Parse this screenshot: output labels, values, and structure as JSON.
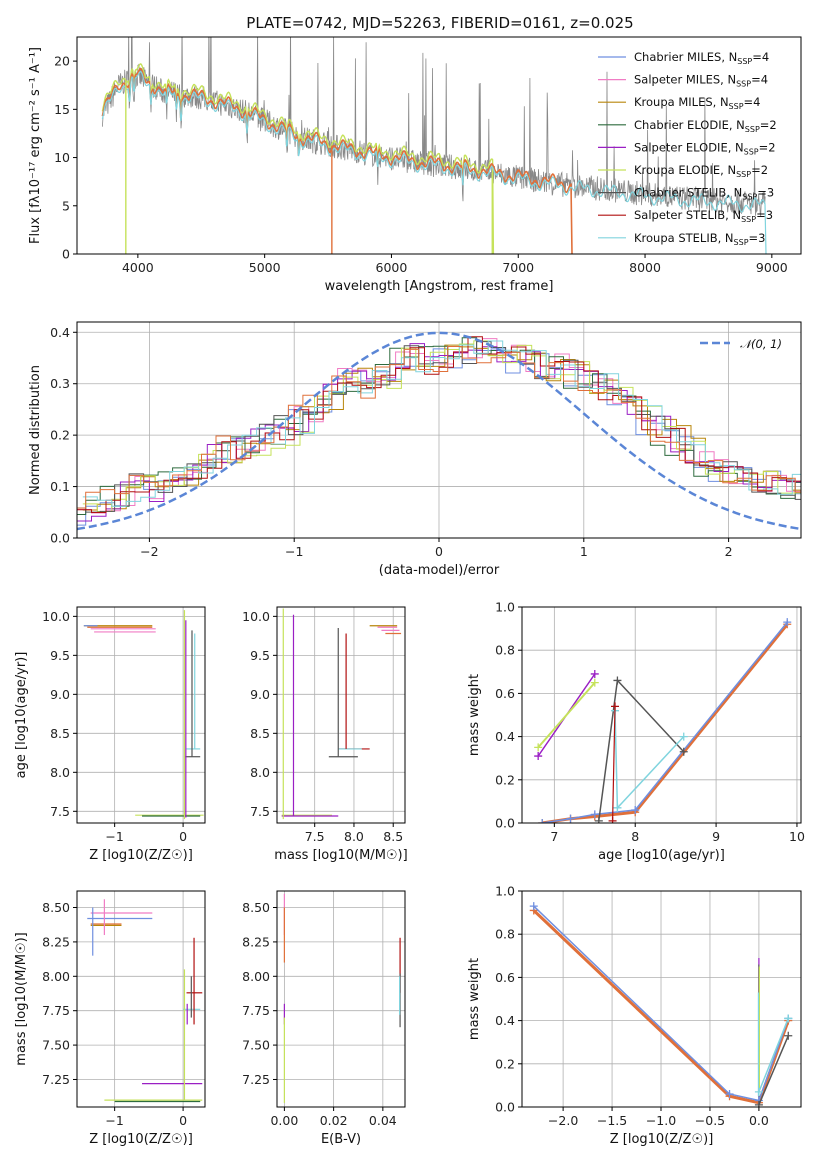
{
  "colors": {
    "chabrier_miles": "#6f8fe0",
    "salpeter_miles": "#f07cc4",
    "kroupa_miles": "#b8860b",
    "chabrier_elodie": "#2e6b3e",
    "salpeter_elodie": "#9a1fc4",
    "kroupa_elodie": "#c5e25a",
    "chabrier_stelib": "#555555",
    "salpeter_stelib": "#b01010",
    "kroupa_stelib": "#80d4de",
    "observed": "#888888",
    "orange": "#e0703a",
    "normal": "#5b86d6"
  },
  "chart_data": [
    {
      "id": "spectrum",
      "type": "line",
      "title": "PLATE=0742, MJD=52263, FIBERID=0161, z=0.025",
      "xlabel": "wavelength [Angstrom, rest frame]",
      "ylabel": "Flux [fλ10⁻¹⁷ erg cm⁻² s⁻¹ A⁻¹]",
      "xlim": [
        3520,
        9230
      ],
      "ylim": [
        0,
        22.5
      ],
      "xticks": [
        4000,
        5000,
        6000,
        7000,
        8000,
        9000
      ],
      "yticks": [
        0,
        5,
        10,
        15,
        20
      ],
      "legend": [
        "Chabrier MILES, N_SSP=4",
        "Salpeter MILES, N_SSP=4",
        "Kroupa MILES, N_SSP=4",
        "Chabrier ELODIE, N_SSP=2",
        "Salpeter ELODIE, N_SSP=2",
        "Kroupa ELODIE, N_SSP=2",
        "Chabrier STELIB, N_SSP=3",
        "Salpeter STELIB, N_SSP=3",
        "Kroupa STELIB, N_SSP=3"
      ],
      "continuum": {
        "x": [
          3720,
          3850,
          4000,
          4200,
          4500,
          4800,
          5000,
          5300,
          5600,
          5900,
          6200,
          6500,
          6800,
          7100,
          7400,
          7700,
          8000,
          8300,
          8600,
          8950
        ],
        "y": [
          14.5,
          17.5,
          18.5,
          16.8,
          16.2,
          15.0,
          13.8,
          12.0,
          11.0,
          10.2,
          9.5,
          9.0,
          8.4,
          7.7,
          7.1,
          6.7,
          6.2,
          5.8,
          5.5,
          5.2
        ]
      },
      "model_ranges": {
        "orange": [
          3720,
          7420
        ],
        "kroupa_elodie": [
          3720,
          6800
        ],
        "kroupa_stelib": [
          3720,
          8950
        ]
      }
    },
    {
      "id": "residual_hist",
      "type": "line",
      "xlabel": "(data-model)/error",
      "ylabel": "Normed distribution",
      "xlim": [
        -2.5,
        2.5
      ],
      "ylim": [
        0,
        0.42
      ],
      "xticks": [
        -2,
        -1,
        0,
        1,
        2
      ],
      "yticks": [
        0.0,
        0.1,
        0.2,
        0.3,
        0.4
      ],
      "legend": [
        "𝒩(0, 1)"
      ],
      "bin_width": 0.1,
      "base_hist": [
        0.055,
        0.065,
        0.08,
        0.09,
        0.1,
        0.1,
        0.11,
        0.12,
        0.135,
        0.155,
        0.17,
        0.18,
        0.19,
        0.2,
        0.21,
        0.23,
        0.25,
        0.27,
        0.3,
        0.31,
        0.3,
        0.32,
        0.34,
        0.35,
        0.345,
        0.35,
        0.36,
        0.365,
        0.36,
        0.355,
        0.35,
        0.345,
        0.335,
        0.33,
        0.32,
        0.31,
        0.29,
        0.27,
        0.25,
        0.23,
        0.21,
        0.19,
        0.17,
        0.15,
        0.13,
        0.12,
        0.11,
        0.1,
        0.1,
        0.095,
        0.09,
        0.085,
        0.08,
        0.075,
        0.07,
        0.07,
        0.065,
        0.06,
        0.05,
        0.045,
        0.04,
        0.04,
        0.035,
        0.035,
        0.03,
        0.03,
        0.03,
        0.028,
        0.025,
        0.025
      ],
      "hist_start": -2.5
    },
    {
      "id": "age_vs_z",
      "type": "scatter",
      "xlabel": "Z [log10(Z/Z☉)]",
      "ylabel": "age [log10(age/yr)]",
      "xlim": [
        -1.55,
        0.32
      ],
      "ylim": [
        7.35,
        10.12
      ],
      "xticks": [
        -1,
        0
      ],
      "yticks": [
        7.5,
        8.0,
        8.5,
        9.0,
        9.5,
        10.0
      ],
      "hsegments": [
        {
          "y": 9.88,
          "x0": -1.45,
          "x1": -0.45,
          "c": "kroupa_miles"
        },
        {
          "y": 9.86,
          "x0": -1.4,
          "x1": -0.45,
          "c": "orange"
        },
        {
          "y": 9.84,
          "x0": -1.35,
          "x1": -0.4,
          "c": "salpeter_miles"
        },
        {
          "y": 9.8,
          "x0": -1.3,
          "x1": -0.4,
          "c": "salpeter_miles"
        },
        {
          "y": 9.88,
          "x0": -1.45,
          "x1": -1.25,
          "c": "chabrier_miles"
        },
        {
          "y": 8.3,
          "x0": 0.05,
          "x1": 0.25,
          "c": "kroupa_stelib"
        },
        {
          "y": 8.2,
          "x0": 0.03,
          "x1": 0.25,
          "c": "chabrier_stelib"
        },
        {
          "y": 7.45,
          "x0": -0.7,
          "x1": 0.3,
          "c": "kroupa_elodie"
        },
        {
          "y": 7.44,
          "x0": -0.6,
          "x1": 0.25,
          "c": "chabrier_elodie"
        }
      ],
      "vsegments": [
        {
          "x": 0.02,
          "y0": 7.4,
          "y1": 10.08,
          "c": "kroupa_elodie"
        },
        {
          "x": 0.13,
          "y0": 8.2,
          "y1": 9.82,
          "c": "chabrier_stelib"
        },
        {
          "x": 0.17,
          "y0": 8.3,
          "y1": 9.78,
          "c": "kroupa_stelib"
        },
        {
          "x": 0.04,
          "y0": 7.42,
          "y1": 9.95,
          "c": "salpeter_elodie"
        }
      ]
    },
    {
      "id": "age_vs_mass",
      "type": "scatter",
      "xlabel": "mass [log10(M/M☉)]",
      "ylabel": "",
      "xlim": [
        7.02,
        8.65
      ],
      "ylim": [
        7.35,
        10.12
      ],
      "xticks": [
        7.5,
        8.0,
        8.5
      ],
      "yticks": [
        7.5,
        8.0,
        8.5,
        9.0,
        9.5,
        10.0
      ],
      "hsegments": [
        {
          "y": 9.88,
          "x0": 8.2,
          "x1": 8.55,
          "c": "kroupa_miles"
        },
        {
          "y": 9.86,
          "x0": 8.3,
          "x1": 8.55,
          "c": "salpeter_miles"
        },
        {
          "y": 9.82,
          "x0": 8.35,
          "x1": 8.58,
          "c": "salpeter_miles"
        },
        {
          "y": 9.78,
          "x0": 8.4,
          "x1": 8.6,
          "c": "orange"
        },
        {
          "y": 8.3,
          "x0": 7.8,
          "x1": 8.2,
          "c": "salpeter_stelib"
        },
        {
          "y": 8.3,
          "x0": 7.8,
          "x1": 8.1,
          "c": "kroupa_stelib"
        },
        {
          "y": 8.2,
          "x0": 7.68,
          "x1": 8.05,
          "c": "chabrier_stelib"
        },
        {
          "y": 7.45,
          "x0": 7.08,
          "x1": 7.72,
          "c": "kroupa_elodie"
        },
        {
          "y": 7.44,
          "x0": 7.08,
          "x1": 7.8,
          "c": "salpeter_elodie"
        }
      ],
      "vsegments": [
        {
          "x": 7.1,
          "y0": 7.4,
          "y1": 10.1,
          "c": "kroupa_elodie"
        },
        {
          "x": 7.23,
          "y0": 7.44,
          "y1": 10.02,
          "c": "salpeter_elodie"
        },
        {
          "x": 7.8,
          "y0": 8.2,
          "y1": 9.85,
          "c": "chabrier_stelib"
        },
        {
          "x": 7.9,
          "y0": 8.3,
          "y1": 9.78,
          "c": "salpeter_stelib"
        }
      ]
    },
    {
      "id": "mass_weight_vs_age",
      "type": "line",
      "xlabel": "age [log10(age/yr)]",
      "ylabel": "mass weight",
      "xlim": [
        6.6,
        10.05
      ],
      "ylim": [
        0,
        1.0
      ],
      "xticks": [
        7,
        8,
        9,
        10
      ],
      "yticks": [
        0.0,
        0.2,
        0.4,
        0.6,
        0.8,
        1.0
      ],
      "series": [
        {
          "c": "orange",
          "x": [
            6.85,
            7.2,
            7.5,
            8.0,
            9.88
          ],
          "y": [
            0.0,
            0.02,
            0.03,
            0.05,
            0.92
          ],
          "w": 3
        },
        {
          "c": "chabrier_miles",
          "x": [
            6.85,
            7.2,
            7.5,
            8.0,
            9.88
          ],
          "y": [
            0.0,
            0.02,
            0.04,
            0.06,
            0.93
          ],
          "w": 1.5
        },
        {
          "c": "salpeter_elodie",
          "x": [
            6.8,
            7.5
          ],
          "y": [
            0.31,
            0.69
          ],
          "w": 1.5
        },
        {
          "c": "kroupa_elodie",
          "x": [
            6.8,
            7.5
          ],
          "y": [
            0.35,
            0.65
          ],
          "w": 2
        },
        {
          "c": "chabrier_stelib",
          "x": [
            7.55,
            7.78,
            8.6
          ],
          "y": [
            0.01,
            0.66,
            0.33
          ],
          "w": 1.5
        },
        {
          "c": "kroupa_stelib",
          "x": [
            7.78,
            8.6
          ],
          "y": [
            0.07,
            0.4
          ],
          "w": 1.5
        },
        {
          "c": "kroupa_stelib",
          "x": [
            7.75,
            7.78
          ],
          "y": [
            0.52,
            0.07
          ],
          "w": 1.5
        },
        {
          "c": "salpeter_stelib",
          "x": [
            7.72,
            7.75
          ],
          "y": [
            0.01,
            0.54
          ],
          "w": 1.2
        }
      ]
    },
    {
      "id": "mass_vs_z",
      "type": "scatter",
      "xlabel": "Z [log10(Z/Z☉)]",
      "ylabel": "mass [log10(M/M☉)]",
      "xlim": [
        -1.55,
        0.32
      ],
      "ylim": [
        7.05,
        8.62
      ],
      "xticks": [
        -1,
        0
      ],
      "yticks": [
        7.25,
        7.5,
        7.75,
        8.0,
        8.25,
        8.5
      ],
      "hsegments": [
        {
          "y": 8.46,
          "x0": -1.35,
          "x1": -0.45,
          "c": "salpeter_miles"
        },
        {
          "y": 8.42,
          "x0": -1.4,
          "x1": -0.45,
          "c": "chabrier_miles"
        },
        {
          "y": 8.38,
          "x0": -1.35,
          "x1": -0.9,
          "c": "orange"
        },
        {
          "y": 8.37,
          "x0": -1.35,
          "x1": -0.9,
          "c": "kroupa_miles"
        },
        {
          "y": 7.88,
          "x0": 0.05,
          "x1": 0.28,
          "c": "salpeter_stelib"
        },
        {
          "y": 7.76,
          "x0": 0.0,
          "x1": 0.25,
          "c": "kroupa_stelib"
        },
        {
          "y": 7.22,
          "x0": -0.6,
          "x1": 0.28,
          "c": "salpeter_elodie"
        },
        {
          "y": 7.1,
          "x0": -1.15,
          "x1": 0.28,
          "c": "kroupa_elodie"
        },
        {
          "y": 7.09,
          "x0": -1.0,
          "x1": 0.25,
          "c": "chabrier_elodie"
        }
      ],
      "vsegments": [
        {
          "x": -1.32,
          "y0": 8.15,
          "y1": 8.5,
          "c": "chabrier_miles"
        },
        {
          "x": -1.15,
          "y0": 8.3,
          "y1": 8.56,
          "c": "salpeter_miles"
        },
        {
          "x": 0.02,
          "y0": 7.1,
          "y1": 8.05,
          "c": "kroupa_elodie"
        },
        {
          "x": 0.16,
          "y0": 7.65,
          "y1": 8.28,
          "c": "salpeter_stelib"
        },
        {
          "x": 0.12,
          "y0": 7.7,
          "y1": 8.0,
          "c": "chabrier_stelib"
        },
        {
          "x": 0.06,
          "y0": 7.65,
          "y1": 7.8,
          "c": "salpeter_elodie"
        }
      ]
    },
    {
      "id": "mass_vs_ebv",
      "type": "scatter",
      "xlabel": "E(B-V)",
      "ylabel": "",
      "xlim": [
        -0.003,
        0.049
      ],
      "ylim": [
        7.05,
        8.62
      ],
      "xticks": [
        0.0,
        0.02,
        0.04
      ],
      "yticks": [
        7.25,
        7.5,
        7.75,
        8.0,
        8.25,
        8.5
      ],
      "vsegments": [
        {
          "x": 0.0,
          "y0": 8.3,
          "y1": 8.6,
          "c": "salpeter_miles"
        },
        {
          "x": 0.0,
          "y0": 8.1,
          "y1": 8.5,
          "c": "orange"
        },
        {
          "x": 0.0,
          "y0": 7.65,
          "y1": 7.8,
          "c": "salpeter_elodie"
        },
        {
          "x": 0.0,
          "y0": 7.08,
          "y1": 7.7,
          "c": "kroupa_elodie"
        },
        {
          "x": 0.047,
          "y0": 7.88,
          "y1": 8.28,
          "c": "salpeter_stelib"
        },
        {
          "x": 0.047,
          "y0": 7.63,
          "y1": 8.02,
          "c": "chabrier_stelib"
        },
        {
          "x": 0.0468,
          "y0": 7.72,
          "y1": 8.0,
          "c": "kroupa_stelib"
        }
      ]
    },
    {
      "id": "mass_weight_vs_z",
      "type": "line",
      "xlabel": "Z [log10(Z/Z☉)]",
      "ylabel": "mass weight",
      "xlim": [
        -2.42,
        0.43
      ],
      "ylim": [
        0,
        1.0
      ],
      "xticks": [
        -2.0,
        -1.5,
        -1.0,
        -0.5,
        0.0
      ],
      "yticks": [
        0.0,
        0.2,
        0.4,
        0.6,
        0.8,
        1.0
      ],
      "series": [
        {
          "c": "orange",
          "x": [
            -2.3,
            -0.3,
            0.0,
            0.3
          ],
          "y": [
            0.91,
            0.05,
            0.02,
            0.4
          ],
          "w": 3
        },
        {
          "c": "chabrier_miles",
          "x": [
            -2.3,
            -0.3,
            0.0,
            0.3
          ],
          "y": [
            0.93,
            0.06,
            0.03,
            0.41
          ],
          "w": 1.5
        },
        {
          "c": "chabrier_stelib",
          "x": [
            0.0,
            0.3
          ],
          "y": [
            0.01,
            0.33
          ],
          "w": 1.5
        },
        {
          "c": "kroupa_stelib",
          "x": [
            0.0,
            0.3
          ],
          "y": [
            0.07,
            0.41
          ],
          "w": 1.5
        }
      ],
      "vsegments": [
        {
          "x": 0.0,
          "y0": 0.02,
          "y1": 0.69,
          "c": "salpeter_elodie"
        },
        {
          "x": 0.0,
          "y0": 0.04,
          "y1": 0.66,
          "c": "chabrier_stelib"
        },
        {
          "x": 0.005,
          "y0": 0.07,
          "y1": 0.65,
          "c": "kroupa_elodie"
        },
        {
          "x": -0.005,
          "y0": 0.05,
          "y1": 0.53,
          "c": "kroupa_stelib"
        }
      ]
    }
  ]
}
